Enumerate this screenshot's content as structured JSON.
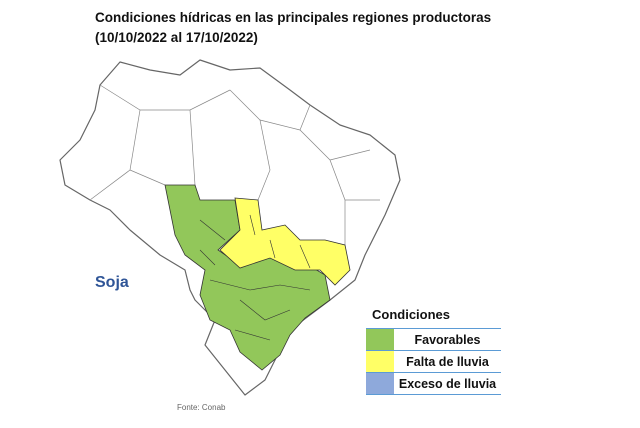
{
  "title": [
    "Condiciones hídricas en las principales regiones productoras",
    "(10/10/2022 al 17/10/2022)"
  ],
  "crop_label": "Soja",
  "legend": {
    "title": "Condiciones",
    "items": [
      {
        "label": "Favorables",
        "color": "#92c75a"
      },
      {
        "label": "Falta de lluvia",
        "color": "#ffff66"
      },
      {
        "label": "Exceso de lluvia",
        "color": "#8ea9db"
      }
    ]
  },
  "source": "Fonte: Conab"
}
